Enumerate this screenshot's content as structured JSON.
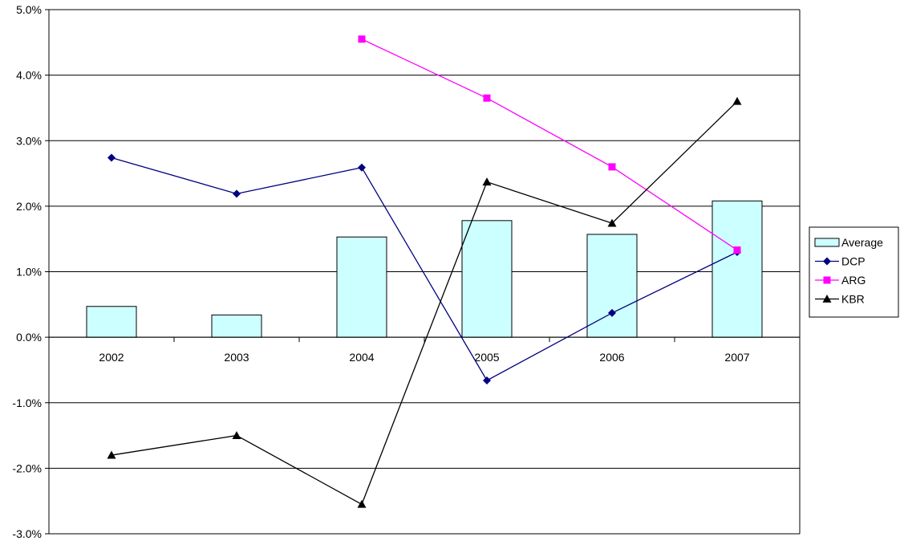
{
  "chart_data": {
    "type": "bar",
    "categories": [
      "2002",
      "2003",
      "2004",
      "2005",
      "2006",
      "2007"
    ],
    "ylim": [
      -3.0,
      5.0
    ],
    "yticks": [
      -3.0,
      -2.0,
      -1.0,
      0.0,
      1.0,
      2.0,
      3.0,
      4.0,
      5.0
    ],
    "ytick_labels": [
      "-3.0%",
      "-2.0%",
      "-1.0%",
      "0.0%",
      "1.0%",
      "2.0%",
      "3.0%",
      "4.0%",
      "5.0%"
    ],
    "grid": true,
    "legend_position": "right",
    "series": [
      {
        "name": "Average",
        "type": "bar",
        "color": "#ccffff",
        "border": "#000000",
        "values": [
          0.47,
          0.34,
          1.53,
          1.78,
          1.57,
          2.08
        ]
      },
      {
        "name": "DCP",
        "type": "line",
        "color": "#000080",
        "marker": "diamond",
        "values": [
          2.74,
          2.19,
          2.59,
          -0.66,
          0.37,
          1.3
        ]
      },
      {
        "name": "ARG",
        "type": "line",
        "color": "#ff00ff",
        "marker": "square",
        "values": [
          null,
          null,
          4.55,
          3.65,
          2.6,
          1.33
        ]
      },
      {
        "name": "KBR",
        "type": "line",
        "color": "#000000",
        "marker": "triangle",
        "values": [
          -1.8,
          -1.5,
          -2.55,
          2.37,
          1.74,
          3.6
        ]
      }
    ]
  }
}
